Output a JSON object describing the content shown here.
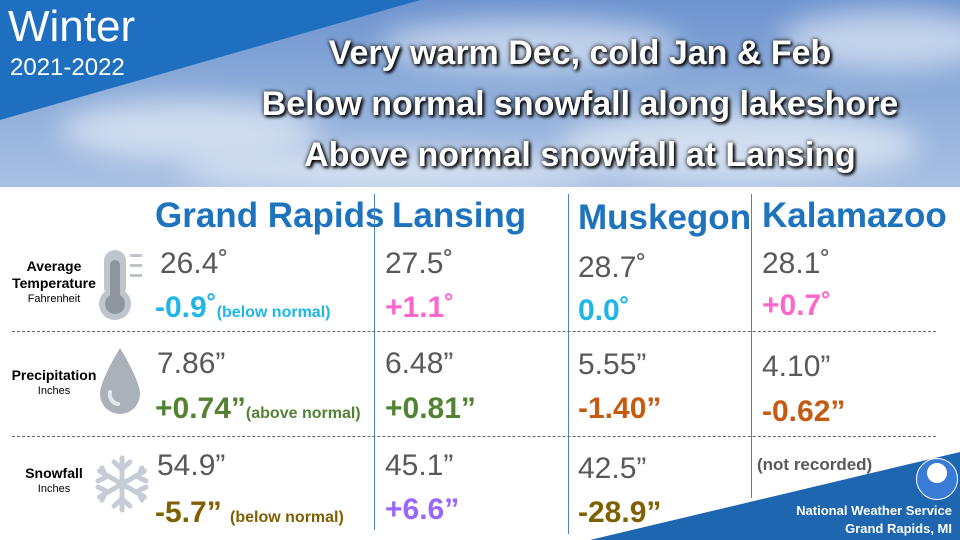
{
  "header": {
    "season": "Winter",
    "years": "2021-2022",
    "headlines": [
      "Very warm Dec, cold Jan & Feb",
      "Below normal snowfall along lakeshore",
      "Above normal snowfall at Lansing"
    ]
  },
  "cities": [
    "Grand Rapids",
    "Lansing",
    "Muskegon",
    "Kalamazoo"
  ],
  "rows": {
    "temperature": {
      "label": "Average Temperature",
      "unit": "Fahrenheit",
      "icon": "thermometer-icon",
      "values": [
        "26.4˚",
        "27.5˚",
        "28.7˚",
        "28.1˚"
      ],
      "departures": [
        "-0.9˚",
        "+1.1˚",
        "0.0˚",
        "+0.7˚"
      ],
      "note": "(below normal)"
    },
    "precipitation": {
      "label": "Precipitation",
      "unit": "Inches",
      "icon": "water-drop-icon",
      "values": [
        "7.86”",
        "6.48”",
        "5.55”",
        "4.10”"
      ],
      "departures": [
        "+0.74”",
        "+0.81”",
        "-1.40”",
        "-0.62”"
      ],
      "note": "(above normal)"
    },
    "snowfall": {
      "label": "Snowfall",
      "unit": "Inches",
      "icon": "snowflake-icon",
      "values": [
        "54.9”",
        "45.1”",
        "42.5”"
      ],
      "departures": [
        "-5.7”",
        "+6.6”",
        "-28.9”"
      ],
      "note": "(below normal)",
      "kalamazoo": "(not recorded)"
    }
  },
  "colors": {
    "city": "#1e73be",
    "cold_cyan": "#1fb5e6",
    "warm_pink": "#ff66cc",
    "wet_green": "#548235",
    "dry_orange": "#c55a11",
    "snow_low_olive": "#7f6000",
    "snow_high_purple": "#9966ff"
  },
  "footer": {
    "line1": "National Weather Service",
    "line2": "Grand Rapids, MI",
    "logo": "noaa-logo"
  }
}
